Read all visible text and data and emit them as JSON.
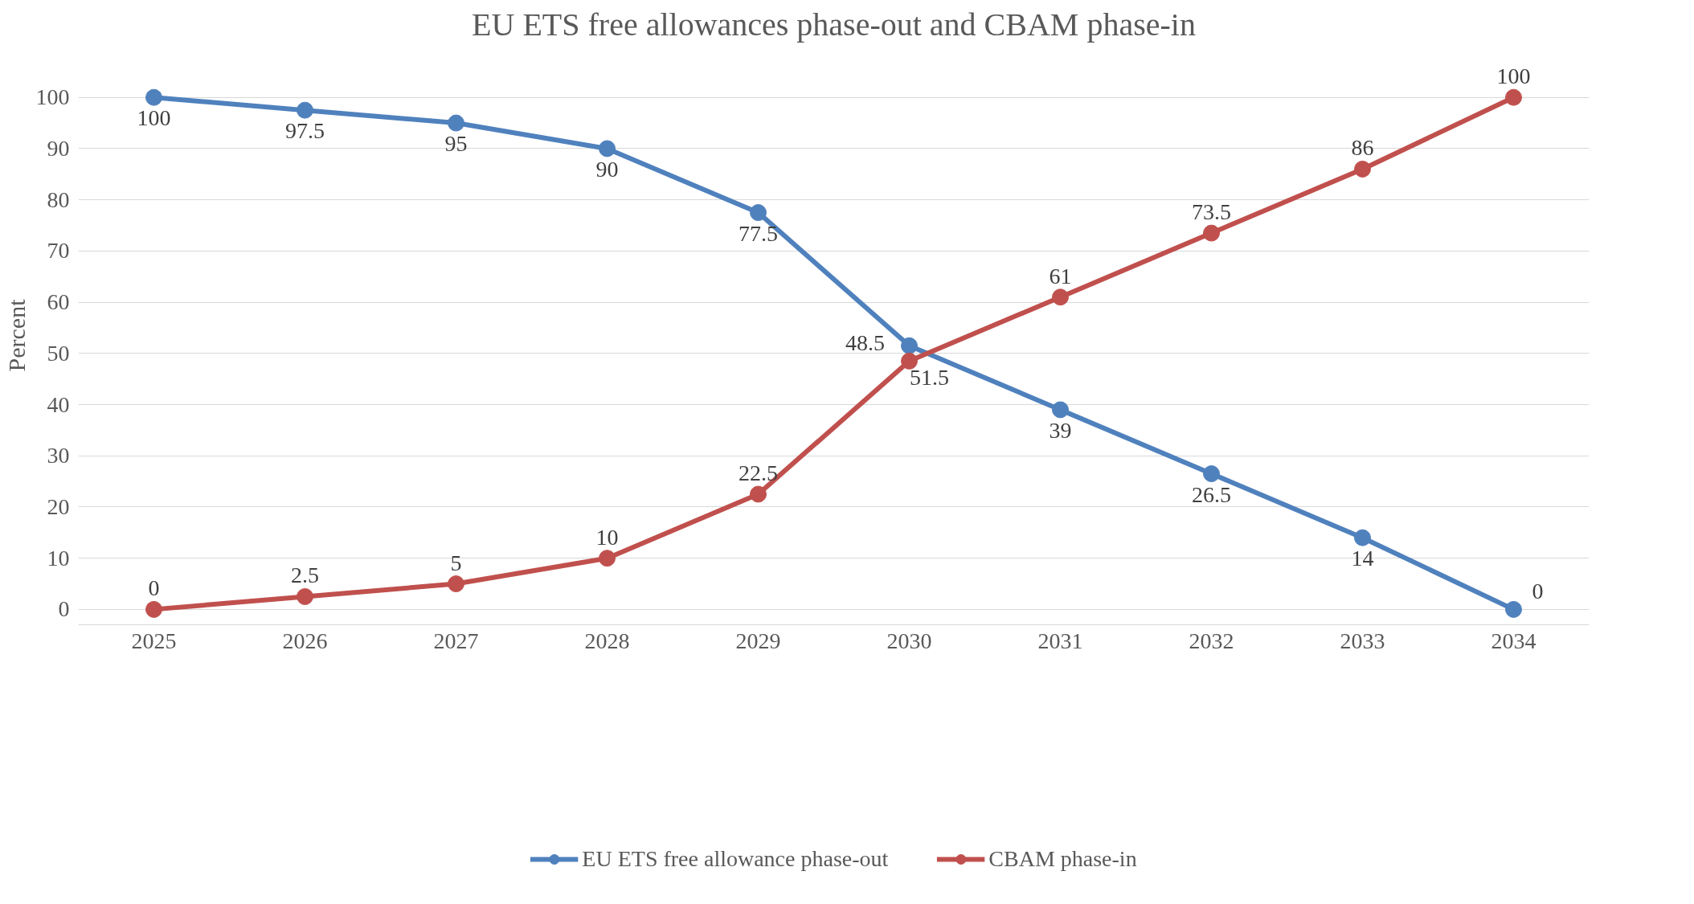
{
  "chart_data": {
    "type": "line",
    "title": "EU ETS free allowances phase-out and CBAM phase-in",
    "ylabel": "Percent",
    "categories": [
      "2025",
      "2026",
      "2027",
      "2028",
      "2029",
      "2030",
      "2031",
      "2032",
      "2033",
      "2034"
    ],
    "series": [
      {
        "name": "EU ETS free allowance phase-out",
        "color": "#4f81bd",
        "values": [
          100,
          97.5,
          95,
          90,
          77.5,
          51.5,
          39,
          26.5,
          14,
          0
        ]
      },
      {
        "name": "CBAM phase-in",
        "color": "#c0504d",
        "values": [
          0,
          2.5,
          5,
          10,
          22.5,
          48.5,
          61,
          73.5,
          86,
          100
        ]
      }
    ],
    "ylim": [
      0,
      100
    ],
    "yticks": [
      0,
      10,
      20,
      30,
      40,
      50,
      60,
      70,
      80,
      90,
      100
    ],
    "grid": "y",
    "legend": "bottom",
    "marker": "circle",
    "line_style": "solid",
    "data_labels": true
  }
}
